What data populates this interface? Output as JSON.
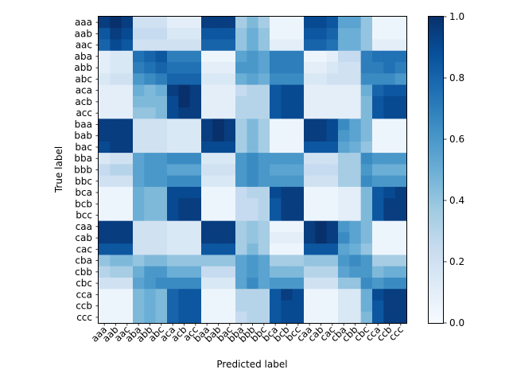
{
  "chart_data": {
    "type": "heatmap",
    "xlabel": "Predicted label",
    "ylabel": "True label",
    "x_categories": [
      "aaa",
      "aab",
      "aac",
      "aba",
      "abb",
      "abc",
      "aca",
      "acb",
      "acc",
      "baa",
      "bab",
      "bac",
      "bba",
      "bbb",
      "bbc",
      "bca",
      "bcb",
      "bcc",
      "caa",
      "cab",
      "cac",
      "cba",
      "cbb",
      "cbc",
      "cca",
      "ccb",
      "ccc"
    ],
    "y_categories": [
      "aaa",
      "aab",
      "aac",
      "aba",
      "abb",
      "abc",
      "aca",
      "acb",
      "acc",
      "baa",
      "bab",
      "bac",
      "bba",
      "bbb",
      "bbc",
      "bca",
      "bcb",
      "bcc",
      "caa",
      "cab",
      "cac",
      "cba",
      "cbb",
      "cbc",
      "cca",
      "ccb",
      "ccc"
    ],
    "colormap": "Blues",
    "colorbar": {
      "range": [
        0,
        1
      ],
      "ticks": [
        "0.0",
        "0.2",
        "0.4",
        "0.6",
        "0.8",
        "1.0"
      ]
    },
    "values": [
      [
        0.95,
        1.0,
        0.95,
        0.2,
        0.2,
        0.2,
        0.1,
        0.1,
        0.1,
        0.95,
        0.95,
        0.95,
        0.35,
        0.45,
        0.35,
        0.05,
        0.05,
        0.05,
        0.9,
        0.9,
        0.85,
        0.55,
        0.55,
        0.4,
        0.05,
        0.05,
        0.05
      ],
      [
        0.85,
        0.95,
        0.9,
        0.25,
        0.25,
        0.25,
        0.15,
        0.15,
        0.15,
        0.85,
        0.85,
        0.85,
        0.4,
        0.5,
        0.4,
        0.05,
        0.05,
        0.05,
        0.85,
        0.85,
        0.8,
        0.5,
        0.5,
        0.4,
        0.05,
        0.05,
        0.05
      ],
      [
        0.8,
        0.9,
        0.85,
        0.2,
        0.2,
        0.2,
        0.2,
        0.2,
        0.2,
        0.8,
        0.8,
        0.8,
        0.4,
        0.5,
        0.4,
        0.1,
        0.1,
        0.1,
        0.8,
        0.8,
        0.75,
        0.5,
        0.5,
        0.4,
        0.1,
        0.1,
        0.1
      ],
      [
        0.1,
        0.15,
        0.15,
        0.75,
        0.8,
        0.85,
        0.7,
        0.7,
        0.7,
        0.05,
        0.05,
        0.05,
        0.55,
        0.6,
        0.55,
        0.7,
        0.7,
        0.7,
        0.05,
        0.05,
        0.1,
        0.25,
        0.25,
        0.7,
        0.75,
        0.75,
        0.75
      ],
      [
        0.1,
        0.15,
        0.15,
        0.7,
        0.75,
        0.8,
        0.75,
        0.75,
        0.75,
        0.1,
        0.1,
        0.1,
        0.6,
        0.6,
        0.55,
        0.7,
        0.7,
        0.7,
        0.1,
        0.1,
        0.15,
        0.2,
        0.2,
        0.7,
        0.7,
        0.75,
        0.7
      ],
      [
        0.15,
        0.2,
        0.2,
        0.6,
        0.65,
        0.7,
        0.8,
        0.8,
        0.8,
        0.15,
        0.15,
        0.15,
        0.5,
        0.55,
        0.5,
        0.65,
        0.65,
        0.65,
        0.15,
        0.15,
        0.2,
        0.2,
        0.2,
        0.65,
        0.65,
        0.65,
        0.6
      ],
      [
        0.1,
        0.1,
        0.1,
        0.5,
        0.45,
        0.5,
        0.95,
        1.0,
        0.95,
        0.1,
        0.1,
        0.1,
        0.25,
        0.3,
        0.3,
        0.85,
        0.9,
        0.9,
        0.1,
        0.1,
        0.1,
        0.1,
        0.1,
        0.5,
        0.8,
        0.85,
        0.85
      ],
      [
        0.1,
        0.1,
        0.1,
        0.45,
        0.45,
        0.45,
        0.9,
        1.0,
        0.95,
        0.1,
        0.1,
        0.1,
        0.3,
        0.3,
        0.3,
        0.85,
        0.9,
        0.9,
        0.1,
        0.1,
        0.1,
        0.1,
        0.1,
        0.45,
        0.85,
        0.9,
        0.9
      ],
      [
        0.1,
        0.1,
        0.1,
        0.4,
        0.4,
        0.45,
        0.9,
        0.95,
        0.95,
        0.1,
        0.1,
        0.1,
        0.3,
        0.3,
        0.3,
        0.85,
        0.9,
        0.9,
        0.1,
        0.1,
        0.1,
        0.1,
        0.1,
        0.45,
        0.85,
        0.9,
        0.9
      ],
      [
        0.95,
        0.95,
        0.95,
        0.2,
        0.2,
        0.2,
        0.15,
        0.15,
        0.15,
        0.95,
        1.0,
        0.95,
        0.35,
        0.45,
        0.35,
        0.05,
        0.05,
        0.05,
        0.95,
        0.95,
        0.9,
        0.65,
        0.55,
        0.45,
        0.05,
        0.05,
        0.05
      ],
      [
        0.95,
        0.95,
        0.95,
        0.2,
        0.2,
        0.2,
        0.15,
        0.15,
        0.15,
        0.95,
        1.0,
        0.95,
        0.35,
        0.45,
        0.35,
        0.05,
        0.05,
        0.05,
        0.95,
        0.95,
        0.9,
        0.6,
        0.55,
        0.45,
        0.05,
        0.05,
        0.05
      ],
      [
        0.9,
        0.95,
        0.95,
        0.2,
        0.2,
        0.2,
        0.15,
        0.15,
        0.15,
        0.9,
        0.9,
        0.9,
        0.35,
        0.45,
        0.35,
        0.05,
        0.05,
        0.05,
        0.85,
        0.85,
        0.85,
        0.55,
        0.5,
        0.4,
        0.05,
        0.05,
        0.05
      ],
      [
        0.15,
        0.2,
        0.2,
        0.55,
        0.6,
        0.6,
        0.65,
        0.65,
        0.65,
        0.15,
        0.15,
        0.15,
        0.6,
        0.65,
        0.6,
        0.6,
        0.6,
        0.6,
        0.2,
        0.2,
        0.2,
        0.35,
        0.35,
        0.65,
        0.6,
        0.6,
        0.6
      ],
      [
        0.25,
        0.3,
        0.3,
        0.55,
        0.6,
        0.6,
        0.55,
        0.55,
        0.55,
        0.2,
        0.2,
        0.2,
        0.6,
        0.65,
        0.6,
        0.55,
        0.55,
        0.55,
        0.25,
        0.25,
        0.25,
        0.35,
        0.35,
        0.6,
        0.5,
        0.5,
        0.5
      ],
      [
        0.2,
        0.2,
        0.2,
        0.55,
        0.6,
        0.6,
        0.65,
        0.65,
        0.65,
        0.15,
        0.15,
        0.15,
        0.6,
        0.65,
        0.6,
        0.6,
        0.6,
        0.6,
        0.2,
        0.2,
        0.2,
        0.35,
        0.35,
        0.65,
        0.6,
        0.6,
        0.6
      ],
      [
        0.05,
        0.05,
        0.05,
        0.5,
        0.45,
        0.45,
        0.9,
        0.9,
        0.9,
        0.05,
        0.05,
        0.05,
        0.25,
        0.3,
        0.3,
        0.9,
        0.95,
        0.95,
        0.05,
        0.05,
        0.05,
        0.1,
        0.1,
        0.45,
        0.85,
        0.9,
        0.95
      ],
      [
        0.05,
        0.05,
        0.05,
        0.5,
        0.45,
        0.45,
        0.9,
        0.95,
        0.95,
        0.05,
        0.05,
        0.05,
        0.25,
        0.25,
        0.3,
        0.85,
        0.95,
        0.95,
        0.05,
        0.05,
        0.05,
        0.1,
        0.1,
        0.45,
        0.85,
        0.95,
        0.95
      ],
      [
        0.05,
        0.05,
        0.05,
        0.5,
        0.45,
        0.45,
        0.9,
        0.95,
        0.95,
        0.05,
        0.05,
        0.05,
        0.25,
        0.25,
        0.3,
        0.85,
        0.95,
        0.95,
        0.05,
        0.05,
        0.05,
        0.1,
        0.1,
        0.45,
        0.85,
        0.95,
        0.95
      ],
      [
        0.95,
        0.95,
        0.95,
        0.2,
        0.2,
        0.2,
        0.15,
        0.15,
        0.15,
        0.95,
        0.95,
        0.95,
        0.35,
        0.4,
        0.35,
        0.05,
        0.05,
        0.05,
        0.95,
        1.0,
        0.95,
        0.6,
        0.55,
        0.45,
        0.05,
        0.05,
        0.05
      ],
      [
        0.95,
        0.95,
        0.95,
        0.2,
        0.2,
        0.2,
        0.15,
        0.15,
        0.15,
        0.95,
        0.95,
        0.95,
        0.35,
        0.4,
        0.35,
        0.1,
        0.1,
        0.1,
        0.95,
        1.0,
        0.95,
        0.65,
        0.55,
        0.45,
        0.05,
        0.05,
        0.05
      ],
      [
        0.85,
        0.85,
        0.85,
        0.2,
        0.2,
        0.2,
        0.15,
        0.15,
        0.15,
        0.85,
        0.85,
        0.85,
        0.35,
        0.45,
        0.35,
        0.05,
        0.05,
        0.05,
        0.85,
        0.85,
        0.85,
        0.55,
        0.5,
        0.4,
        0.05,
        0.05,
        0.05
      ],
      [
        0.4,
        0.45,
        0.45,
        0.4,
        0.45,
        0.45,
        0.4,
        0.4,
        0.4,
        0.4,
        0.4,
        0.4,
        0.55,
        0.6,
        0.55,
        0.35,
        0.35,
        0.35,
        0.4,
        0.4,
        0.4,
        0.6,
        0.65,
        0.6,
        0.35,
        0.35,
        0.35
      ],
      [
        0.3,
        0.35,
        0.35,
        0.5,
        0.6,
        0.6,
        0.5,
        0.5,
        0.5,
        0.25,
        0.25,
        0.25,
        0.55,
        0.6,
        0.55,
        0.45,
        0.45,
        0.45,
        0.3,
        0.3,
        0.3,
        0.55,
        0.6,
        0.6,
        0.45,
        0.5,
        0.5
      ],
      [
        0.2,
        0.2,
        0.2,
        0.55,
        0.6,
        0.65,
        0.65,
        0.65,
        0.65,
        0.15,
        0.15,
        0.15,
        0.55,
        0.65,
        0.55,
        0.6,
        0.6,
        0.6,
        0.2,
        0.2,
        0.2,
        0.4,
        0.4,
        0.65,
        0.6,
        0.65,
        0.65
      ],
      [
        0.05,
        0.05,
        0.05,
        0.45,
        0.5,
        0.45,
        0.8,
        0.85,
        0.85,
        0.05,
        0.05,
        0.05,
        0.3,
        0.3,
        0.3,
        0.85,
        0.95,
        0.9,
        0.05,
        0.05,
        0.05,
        0.15,
        0.15,
        0.5,
        0.9,
        0.95,
        0.95
      ],
      [
        0.05,
        0.05,
        0.05,
        0.45,
        0.5,
        0.45,
        0.8,
        0.85,
        0.85,
        0.05,
        0.05,
        0.05,
        0.3,
        0.3,
        0.3,
        0.85,
        0.9,
        0.9,
        0.05,
        0.05,
        0.05,
        0.15,
        0.15,
        0.5,
        0.85,
        0.95,
        0.95
      ],
      [
        0.05,
        0.05,
        0.05,
        0.45,
        0.5,
        0.45,
        0.8,
        0.85,
        0.85,
        0.05,
        0.05,
        0.05,
        0.25,
        0.3,
        0.3,
        0.85,
        0.9,
        0.9,
        0.05,
        0.05,
        0.05,
        0.15,
        0.15,
        0.45,
        0.85,
        0.95,
        0.95
      ]
    ]
  }
}
